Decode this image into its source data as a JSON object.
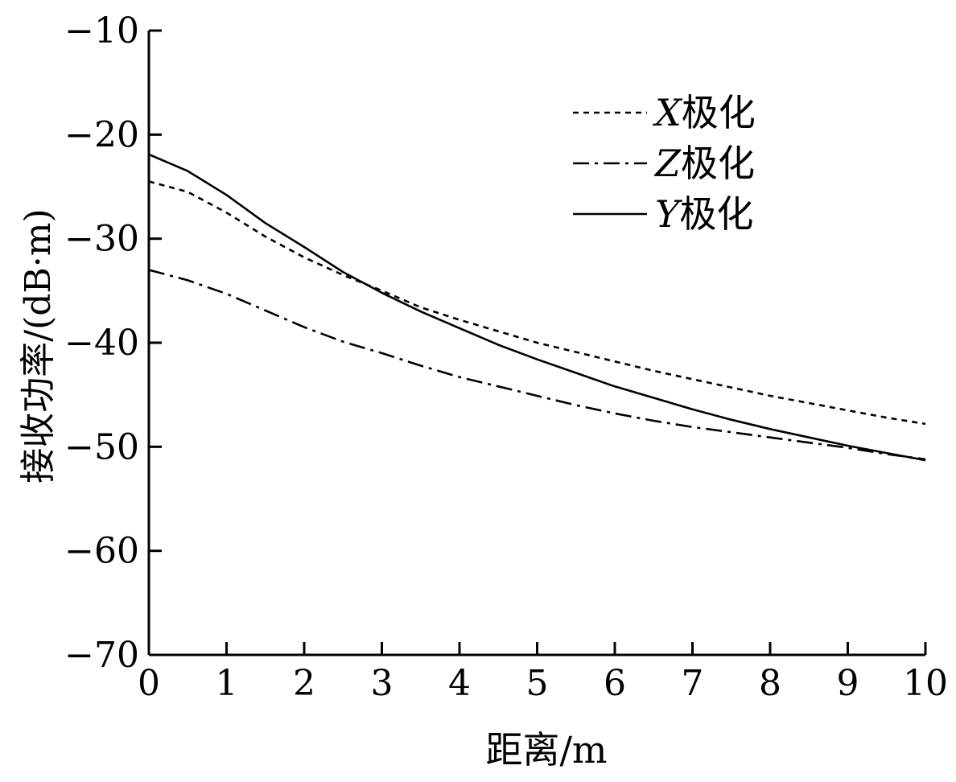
{
  "chart_data": {
    "type": "line",
    "xlabel": "距离/m",
    "ylabel": "接收功率/(dB·m)",
    "xlim": [
      0,
      10
    ],
    "ylim": [
      -70,
      -10
    ],
    "x_ticks": [
      0,
      1,
      2,
      3,
      4,
      5,
      6,
      7,
      8,
      9,
      10
    ],
    "y_ticks": [
      -10,
      -20,
      -30,
      -40,
      -50,
      -60,
      -70
    ],
    "x_tick_labels": [
      "0",
      "1",
      "2",
      "3",
      "4",
      "5",
      "6",
      "7",
      "8",
      "9",
      "10"
    ],
    "y_tick_labels": [
      "−10",
      "−20",
      "−30",
      "−40",
      "−50",
      "−60",
      "−70"
    ],
    "grid": false,
    "legend_position": "top-right",
    "series": [
      {
        "name": "X极化",
        "name_letter": "X",
        "name_suffix": "极化",
        "line_style": "dotted",
        "x": [
          0,
          0.5,
          1,
          1.5,
          2,
          2.5,
          3,
          3.5,
          4,
          4.5,
          5,
          5.5,
          6,
          6.5,
          7,
          7.5,
          8,
          8.5,
          9,
          9.5,
          10
        ],
        "y": [
          -24.5,
          -25.5,
          -27.5,
          -29.8,
          -31.8,
          -33.5,
          -35.0,
          -36.6,
          -37.8,
          -38.9,
          -40.0,
          -40.9,
          -41.8,
          -42.7,
          -43.5,
          -44.3,
          -45.1,
          -45.8,
          -46.5,
          -47.2,
          -47.8
        ]
      },
      {
        "name": "Z极化",
        "name_letter": "Z",
        "name_suffix": "极化",
        "line_style": "dash-dot",
        "x": [
          0,
          0.5,
          1,
          1.5,
          2,
          2.5,
          3,
          3.5,
          4,
          4.5,
          5,
          5.5,
          6,
          6.5,
          7,
          7.5,
          8,
          8.5,
          9,
          9.5,
          10
        ],
        "y": [
          -33.0,
          -34.0,
          -35.3,
          -36.9,
          -38.5,
          -39.9,
          -41.0,
          -42.2,
          -43.3,
          -44.2,
          -45.1,
          -46.0,
          -46.8,
          -47.5,
          -48.1,
          -48.6,
          -49.1,
          -49.6,
          -50.1,
          -50.7,
          -51.2
        ]
      },
      {
        "name": "Y极化",
        "name_letter": "Y",
        "name_suffix": "极化",
        "line_style": "solid",
        "x": [
          0,
          0.5,
          1,
          1.5,
          2,
          2.5,
          3,
          3.5,
          4,
          4.5,
          5,
          5.5,
          6,
          6.5,
          7,
          7.5,
          8,
          8.5,
          9,
          9.5,
          10
        ],
        "y": [
          -21.9,
          -23.5,
          -25.8,
          -28.5,
          -30.8,
          -33.2,
          -35.2,
          -37.0,
          -38.6,
          -40.2,
          -41.6,
          -42.9,
          -44.2,
          -45.3,
          -46.4,
          -47.4,
          -48.3,
          -49.1,
          -49.9,
          -50.6,
          -51.3
        ]
      }
    ]
  }
}
